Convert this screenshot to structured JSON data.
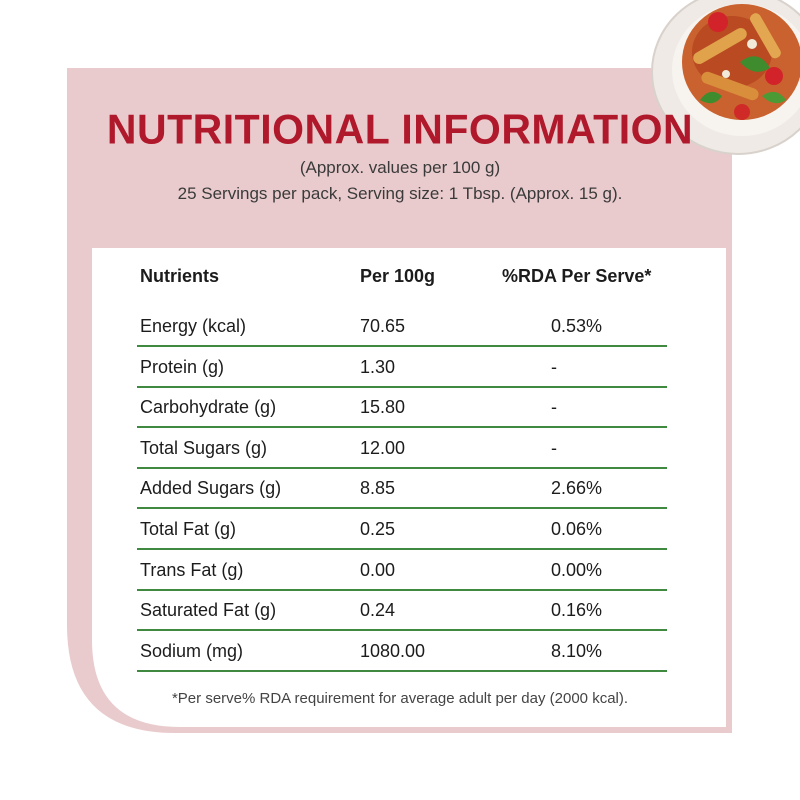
{
  "header": {
    "title": "NUTRITIONAL INFORMATION",
    "subtitle_line1": "(Approx. values per 100 g)",
    "subtitle_line2": "25 Servings per pack, Serving size: 1 Tbsp. (Approx. 15 g)."
  },
  "table": {
    "headers": [
      "Nutrients",
      "Per 100g",
      "%RDA Per Serve*"
    ],
    "rows": [
      [
        "Energy (kcal)",
        "70.65",
        "0.53%"
      ],
      [
        "Protein (g)",
        "1.30",
        "-"
      ],
      [
        "Carbohydrate (g)",
        "15.80",
        "-"
      ],
      [
        "Total Sugars (g)",
        "12.00",
        "-"
      ],
      [
        "Added Sugars (g)",
        "8.85",
        "2.66%"
      ],
      [
        "Total Fat (g)",
        "0.25",
        "0.06%"
      ],
      [
        "Trans Fat (g)",
        "0.00",
        "0.00%"
      ],
      [
        "Saturated Fat (g)",
        "0.24",
        "0.16%"
      ],
      [
        "Sodium (mg)",
        "1080.00",
        "8.10%"
      ]
    ]
  },
  "footnote": "*Per serve% RDA requirement for average adult per day (2000 kcal).",
  "colors": {
    "title": "#b0182b",
    "panel": "#e9cbcd",
    "rule": "#3f8a40"
  }
}
